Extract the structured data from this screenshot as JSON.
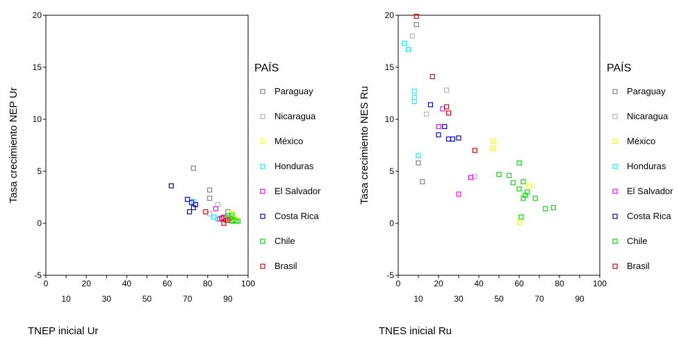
{
  "chart_data": [
    {
      "type": "scatter",
      "xlabel": "TNEP inicial Ur",
      "ylabel": "Tasa crecimiento NEP Ur",
      "xlim": [
        0,
        100
      ],
      "ylim": [
        -5,
        20
      ],
      "xticks_top": [
        "0",
        "20",
        "40",
        "60",
        "80",
        "100"
      ],
      "xticks_bottom": [
        "10",
        "30",
        "50",
        "70",
        "90"
      ],
      "yticks": [
        "-5",
        "0",
        "5",
        "10",
        "15",
        "20"
      ],
      "grid": false,
      "legend_title": "PAÍS",
      "legend_position": "right",
      "series": [
        {
          "name": "Paraguay",
          "color": "#808080",
          "points": [
            [
              73,
              5.3
            ],
            [
              81,
              3.2
            ],
            [
              81,
              2.4
            ],
            [
              90,
              1.1
            ]
          ]
        },
        {
          "name": "Nicaragua",
          "color": "#b4b4b4",
          "points": [
            [
              85,
              1.8
            ],
            [
              81,
              0.9
            ],
            [
              91,
              0.7
            ]
          ]
        },
        {
          "name": "México",
          "color": "#ffff00",
          "points": [
            [
              92,
              1.0
            ],
            [
              93,
              0.6
            ],
            [
              91,
              0.3
            ],
            [
              94,
              0.4
            ]
          ]
        },
        {
          "name": "Honduras",
          "color": "#00ffff",
          "points": [
            [
              73,
              2.1
            ],
            [
              83,
              0.6
            ],
            [
              85,
              0.4
            ]
          ]
        },
        {
          "name": "El Salvador",
          "color": "#ff00ff",
          "points": [
            [
              84,
              1.4
            ],
            [
              86,
              0.4
            ],
            [
              88,
              0.6
            ]
          ]
        },
        {
          "name": "Costa Rica",
          "color": "#0000cc",
          "points": [
            [
              62,
              3.6
            ],
            [
              70,
              2.3
            ],
            [
              72,
              2.0
            ],
            [
              74,
              1.8
            ],
            [
              73,
              1.5
            ],
            [
              71,
              1.1
            ]
          ]
        },
        {
          "name": "Chile",
          "color": "#00dd00",
          "points": [
            [
              90,
              0.7
            ],
            [
              91,
              0.5
            ],
            [
              92,
              0.8
            ],
            [
              93,
              0.3
            ],
            [
              94,
              0.2
            ],
            [
              95,
              0.2
            ],
            [
              89,
              0.5
            ],
            [
              92,
              0.2
            ]
          ]
        },
        {
          "name": "Brasil",
          "color": "#dd0000",
          "points": [
            [
              79,
              1.1
            ],
            [
              87,
              0.5
            ],
            [
              88,
              0.0
            ],
            [
              89,
              0.3
            ],
            [
              90,
              0.3
            ]
          ]
        }
      ]
    },
    {
      "type": "scatter",
      "xlabel": "TNES inicial Ru",
      "ylabel": "Tasa crecimiento NES Ru",
      "xlim": [
        0,
        100
      ],
      "ylim": [
        -5,
        20
      ],
      "xticks_top": [
        "0",
        "20",
        "40",
        "60",
        "80",
        "100"
      ],
      "xticks_bottom": [
        "10",
        "30",
        "50",
        "70",
        "90"
      ],
      "yticks": [
        "-5",
        "0",
        "5",
        "10",
        "15",
        "20"
      ],
      "grid": false,
      "legend_title": "PAÍS",
      "legend_position": "right",
      "series": [
        {
          "name": "Paraguay",
          "color": "#808080",
          "points": [
            [
              9,
              19.1
            ],
            [
              12,
              4.0
            ],
            [
              10,
              5.8
            ]
          ]
        },
        {
          "name": "Nicaragua",
          "color": "#b4b4b4",
          "points": [
            [
              7,
              18.0
            ],
            [
              24,
              12.8
            ],
            [
              14,
              10.5
            ],
            [
              38,
              4.5
            ]
          ]
        },
        {
          "name": "México",
          "color": "#ffff00",
          "points": [
            [
              47,
              7.9
            ],
            [
              47,
              7.2
            ],
            [
              60,
              0.1
            ],
            [
              65,
              3.6
            ]
          ]
        },
        {
          "name": "Honduras",
          "color": "#00ffff",
          "points": [
            [
              3,
              17.3
            ],
            [
              5,
              16.7
            ],
            [
              8,
              12.7
            ],
            [
              8,
              12.1
            ],
            [
              8,
              11.7
            ],
            [
              10,
              6.5
            ]
          ]
        },
        {
          "name": "El Salvador",
          "color": "#ff00ff",
          "points": [
            [
              22,
              11.0
            ],
            [
              20,
              9.3
            ],
            [
              36,
              4.4
            ],
            [
              30,
              2.8
            ]
          ]
        },
        {
          "name": "Costa Rica",
          "color": "#0000cc",
          "points": [
            [
              16,
              11.4
            ],
            [
              23,
              9.3
            ],
            [
              20,
              8.5
            ],
            [
              25,
              8.1
            ],
            [
              27,
              8.1
            ],
            [
              30,
              8.2
            ]
          ]
        },
        {
          "name": "Chile",
          "color": "#00dd00",
          "points": [
            [
              50,
              4.7
            ],
            [
              55,
              4.6
            ],
            [
              57,
              3.9
            ],
            [
              60,
              5.8
            ],
            [
              60,
              3.3
            ],
            [
              62,
              4.0
            ],
            [
              64,
              3.0
            ],
            [
              63,
              2.7
            ],
            [
              62,
              2.4
            ],
            [
              68,
              2.4
            ],
            [
              73,
              1.4
            ],
            [
              77,
              1.5
            ],
            [
              61,
              0.6
            ]
          ]
        },
        {
          "name": "Brasil",
          "color": "#dd0000",
          "points": [
            [
              9,
              19.9
            ],
            [
              17,
              14.1
            ],
            [
              24,
              11.2
            ],
            [
              25,
              10.6
            ],
            [
              38,
              7.0
            ]
          ]
        }
      ]
    }
  ]
}
